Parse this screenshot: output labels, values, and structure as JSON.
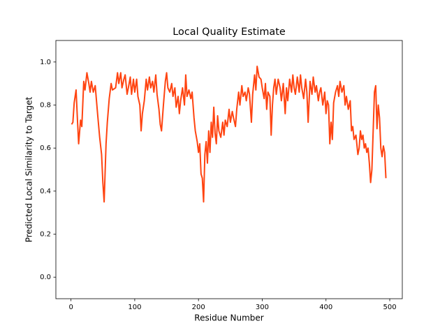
{
  "chart_data": {
    "type": "line",
    "title": "Local Quality Estimate",
    "x_label": "Residue Number",
    "y_label": "Predicted Local Similarity to Target",
    "color": "#ff4411",
    "xlim": [
      -23.7,
      519.7
    ],
    "ylim": [
      -0.1,
      1.1
    ],
    "xticks": [
      0,
      100,
      200,
      300,
      400,
      500
    ],
    "yticks": [
      {
        "value": 0,
        "label": "0.0"
      },
      0.2,
      0.4,
      0.6,
      0.8,
      {
        "value": 1,
        "label": "1.0"
      }
    ],
    "x": [
      1,
      3,
      5,
      8,
      10,
      12,
      15,
      17,
      20,
      22,
      25,
      28,
      30,
      32,
      35,
      38,
      40,
      42,
      45,
      48,
      50,
      52,
      55,
      57,
      60,
      63,
      65,
      70,
      73,
      75,
      78,
      80,
      83,
      85,
      88,
      90,
      93,
      95,
      98,
      100,
      103,
      105,
      108,
      110,
      112,
      115,
      118,
      120,
      123,
      125,
      128,
      130,
      133,
      135,
      138,
      140,
      142,
      145,
      148,
      150,
      152,
      155,
      158,
      160,
      163,
      165,
      168,
      170,
      172,
      175,
      178,
      180,
      182,
      185,
      188,
      190,
      193,
      195,
      198,
      200,
      202,
      204,
      206,
      208,
      210,
      212,
      214,
      216,
      218,
      220,
      222,
      224,
      226,
      228,
      230,
      232,
      235,
      238,
      240,
      242,
      245,
      248,
      250,
      253,
      255,
      258,
      260,
      263,
      265,
      268,
      270,
      273,
      275,
      278,
      280,
      283,
      285,
      288,
      290,
      292,
      295,
      298,
      300,
      303,
      305,
      307,
      309,
      312,
      314,
      316,
      318,
      320,
      322,
      325,
      328,
      330,
      333,
      336,
      338,
      340,
      343,
      346,
      348,
      350,
      352,
      355,
      358,
      360,
      362,
      365,
      368,
      370,
      372,
      375,
      378,
      380,
      383,
      385,
      388,
      390,
      392,
      395,
      398,
      400,
      402,
      404,
      406,
      408,
      410,
      412,
      415,
      418,
      420,
      422,
      425,
      428,
      430,
      432,
      435,
      438,
      440,
      442,
      444,
      447,
      450,
      452,
      454,
      456,
      458,
      460,
      462,
      464,
      466,
      468,
      470,
      472,
      474,
      476,
      478,
      480,
      482,
      484,
      486,
      488,
      490,
      492,
      494
    ],
    "values": [
      0.71,
      0.72,
      0.81,
      0.87,
      0.74,
      0.62,
      0.73,
      0.7,
      0.91,
      0.87,
      0.95,
      0.9,
      0.86,
      0.91,
      0.86,
      0.89,
      0.82,
      0.75,
      0.65,
      0.57,
      0.44,
      0.35,
      0.62,
      0.72,
      0.83,
      0.9,
      0.87,
      0.88,
      0.95,
      0.9,
      0.95,
      0.88,
      0.92,
      0.94,
      0.85,
      0.88,
      0.93,
      0.85,
      0.92,
      0.86,
      0.92,
      0.84,
      0.8,
      0.68,
      0.76,
      0.82,
      0.92,
      0.87,
      0.93,
      0.88,
      0.91,
      0.86,
      0.94,
      0.85,
      0.78,
      0.71,
      0.68,
      0.8,
      0.91,
      0.95,
      0.88,
      0.86,
      0.9,
      0.84,
      0.88,
      0.79,
      0.84,
      0.76,
      0.82,
      0.88,
      0.8,
      0.94,
      0.84,
      0.87,
      0.83,
      0.86,
      0.74,
      0.68,
      0.63,
      0.58,
      0.62,
      0.48,
      0.46,
      0.35,
      0.57,
      0.63,
      0.53,
      0.68,
      0.58,
      0.72,
      0.65,
      0.79,
      0.67,
      0.62,
      0.75,
      0.68,
      0.65,
      0.72,
      0.66,
      0.73,
      0.7,
      0.78,
      0.72,
      0.77,
      0.74,
      0.7,
      0.78,
      0.86,
      0.8,
      0.89,
      0.84,
      0.86,
      0.82,
      0.88,
      0.85,
      0.72,
      0.85,
      0.94,
      0.87,
      0.98,
      0.93,
      0.92,
      0.88,
      0.83,
      0.9,
      0.78,
      0.86,
      0.84,
      0.66,
      0.8,
      0.88,
      0.92,
      0.85,
      0.92,
      0.88,
      0.82,
      0.9,
      0.76,
      0.88,
      0.82,
      0.92,
      0.86,
      0.94,
      0.88,
      0.85,
      0.93,
      0.86,
      0.94,
      0.88,
      0.83,
      0.92,
      0.86,
      0.72,
      0.91,
      0.85,
      0.93,
      0.86,
      0.89,
      0.82,
      0.86,
      0.88,
      0.8,
      0.86,
      0.76,
      0.82,
      0.8,
      0.62,
      0.72,
      0.64,
      0.81,
      0.86,
      0.89,
      0.84,
      0.91,
      0.86,
      0.89,
      0.8,
      0.84,
      0.78,
      0.82,
      0.68,
      0.7,
      0.64,
      0.66,
      0.57,
      0.6,
      0.68,
      0.64,
      0.66,
      0.6,
      0.62,
      0.58,
      0.6,
      0.53,
      0.44,
      0.5,
      0.68,
      0.86,
      0.89,
      0.69,
      0.8,
      0.74,
      0.6,
      0.56,
      0.61,
      0.58,
      0.46
    ]
  }
}
